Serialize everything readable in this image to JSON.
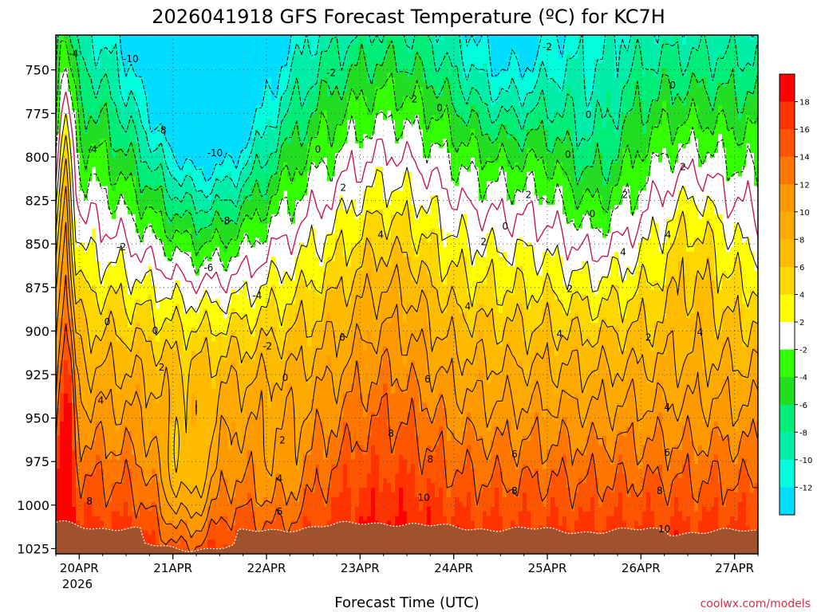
{
  "chart_data": {
    "type": "heatmap",
    "title": "2026041918 GFS Forecast Temperature (ºC) for KC7H",
    "xlabel": "Forecast Time (UTC)",
    "ylabel": "",
    "credit": "coolwx.com/models",
    "x_ticks": [
      "20APR",
      "21APR",
      "22APR",
      "23APR",
      "24APR",
      "25APR",
      "26APR",
      "27APR"
    ],
    "x_tick_year": "2026",
    "x_range_days": [
      19.75,
      27.25
    ],
    "y_ticks": [
      750,
      775,
      800,
      825,
      850,
      875,
      900,
      925,
      950,
      975,
      1000,
      1025
    ],
    "y_range_hpa": [
      730,
      1028
    ],
    "colorbar": {
      "labels": [
        18,
        16,
        14,
        12,
        10,
        8,
        6,
        4,
        2,
        -2,
        -4,
        -6,
        -8,
        -10,
        -12
      ],
      "bands": [
        {
          "min": 18,
          "max": 20,
          "color": "#ff0000"
        },
        {
          "min": 16,
          "max": 18,
          "color": "#ff3300"
        },
        {
          "min": 14,
          "max": 16,
          "color": "#ff5500"
        },
        {
          "min": 12,
          "max": 14,
          "color": "#ff7700"
        },
        {
          "min": 10,
          "max": 12,
          "color": "#ff9900"
        },
        {
          "min": 8,
          "max": 10,
          "color": "#ffaa00"
        },
        {
          "min": 6,
          "max": 8,
          "color": "#ffbb00"
        },
        {
          "min": 4,
          "max": 6,
          "color": "#ffd700"
        },
        {
          "min": 2,
          "max": 4,
          "color": "#ffff00"
        },
        {
          "min": -2,
          "max": 2,
          "color": "#ffffff"
        },
        {
          "min": -4,
          "max": -2,
          "color": "#33ff00"
        },
        {
          "min": -6,
          "max": -4,
          "color": "#22dd22"
        },
        {
          "min": -8,
          "max": -6,
          "color": "#00ee77"
        },
        {
          "min": -10,
          "max": -8,
          "color": "#00eeaa"
        },
        {
          "min": -12,
          "max": -10,
          "color": "#00ffdd"
        },
        {
          "min": -14,
          "max": -12,
          "color": "#00ddff"
        }
      ]
    },
    "ground_color": "#a0522d",
    "zero_line_color": "#c2185b",
    "contour_labels": [
      {
        "text": "-10",
        "x": 20.55,
        "y": 744
      },
      {
        "text": "-10",
        "x": 21.45,
        "y": 798
      },
      {
        "text": "-8",
        "x": 20.88,
        "y": 785
      },
      {
        "text": "-8",
        "x": 21.56,
        "y": 837
      },
      {
        "text": "-6",
        "x": 21.38,
        "y": 864
      },
      {
        "text": "-4",
        "x": 20.14,
        "y": 796
      },
      {
        "text": "-4",
        "x": 21.9,
        "y": 880
      },
      {
        "text": "-2",
        "x": 20.45,
        "y": 852
      },
      {
        "text": "-2",
        "x": 22.01,
        "y": 909
      },
      {
        "text": "-2",
        "x": 22.69,
        "y": 752
      },
      {
        "text": "-2",
        "x": 25.0,
        "y": 737
      },
      {
        "text": "-4",
        "x": 19.94,
        "y": 741
      },
      {
        "text": "0",
        "x": 20.3,
        "y": 895
      },
      {
        "text": "0",
        "x": 20.81,
        "y": 900
      },
      {
        "text": "0",
        "x": 22.2,
        "y": 927
      },
      {
        "text": "0",
        "x": 22.55,
        "y": 796
      },
      {
        "text": "0",
        "x": 23.85,
        "y": 772
      },
      {
        "text": "0",
        "x": 24.55,
        "y": 840
      },
      {
        "text": "0",
        "x": 25.22,
        "y": 799
      },
      {
        "text": "0",
        "x": 25.44,
        "y": 776
      },
      {
        "text": "0",
        "x": 25.48,
        "y": 833
      },
      {
        "text": "0",
        "x": 26.34,
        "y": 759
      },
      {
        "text": "2",
        "x": 20.88,
        "y": 921
      },
      {
        "text": "2",
        "x": 22.17,
        "y": 963
      },
      {
        "text": "2",
        "x": 22.82,
        "y": 818
      },
      {
        "text": "2",
        "x": 23.58,
        "y": 767
      },
      {
        "text": "2",
        "x": 24.32,
        "y": 849
      },
      {
        "text": "2",
        "x": 24.8,
        "y": 822
      },
      {
        "text": "2",
        "x": 25.24,
        "y": 876
      },
      {
        "text": "2",
        "x": 25.83,
        "y": 822
      },
      {
        "text": "2",
        "x": 26.45,
        "y": 806
      },
      {
        "text": "2",
        "x": 26.08,
        "y": 904
      },
      {
        "text": "4",
        "x": 20.23,
        "y": 940
      },
      {
        "text": "4",
        "x": 22.14,
        "y": 985
      },
      {
        "text": "4",
        "x": 23.22,
        "y": 845
      },
      {
        "text": "4",
        "x": 24.15,
        "y": 886
      },
      {
        "text": "4",
        "x": 25.13,
        "y": 902
      },
      {
        "text": "4",
        "x": 25.81,
        "y": 855
      },
      {
        "text": "4",
        "x": 26.29,
        "y": 845
      },
      {
        "text": "4",
        "x": 26.63,
        "y": 901
      },
      {
        "text": "4",
        "x": 26.28,
        "y": 944
      },
      {
        "text": "6",
        "x": 22.14,
        "y": 1004
      },
      {
        "text": "6",
        "x": 22.81,
        "y": 904
      },
      {
        "text": "6",
        "x": 23.72,
        "y": 928
      },
      {
        "text": "6",
        "x": 24.65,
        "y": 971
      },
      {
        "text": "6",
        "x": 26.28,
        "y": 970
      },
      {
        "text": "8",
        "x": 20.11,
        "y": 998
      },
      {
        "text": "8",
        "x": 23.33,
        "y": 959
      },
      {
        "text": "8",
        "x": 23.75,
        "y": 974
      },
      {
        "text": "8",
        "x": 24.65,
        "y": 992
      },
      {
        "text": "8",
        "x": 26.2,
        "y": 992
      },
      {
        "text": "10",
        "x": 23.68,
        "y": 996
      },
      {
        "text": "10",
        "x": 26.25,
        "y": 1014
      }
    ]
  }
}
